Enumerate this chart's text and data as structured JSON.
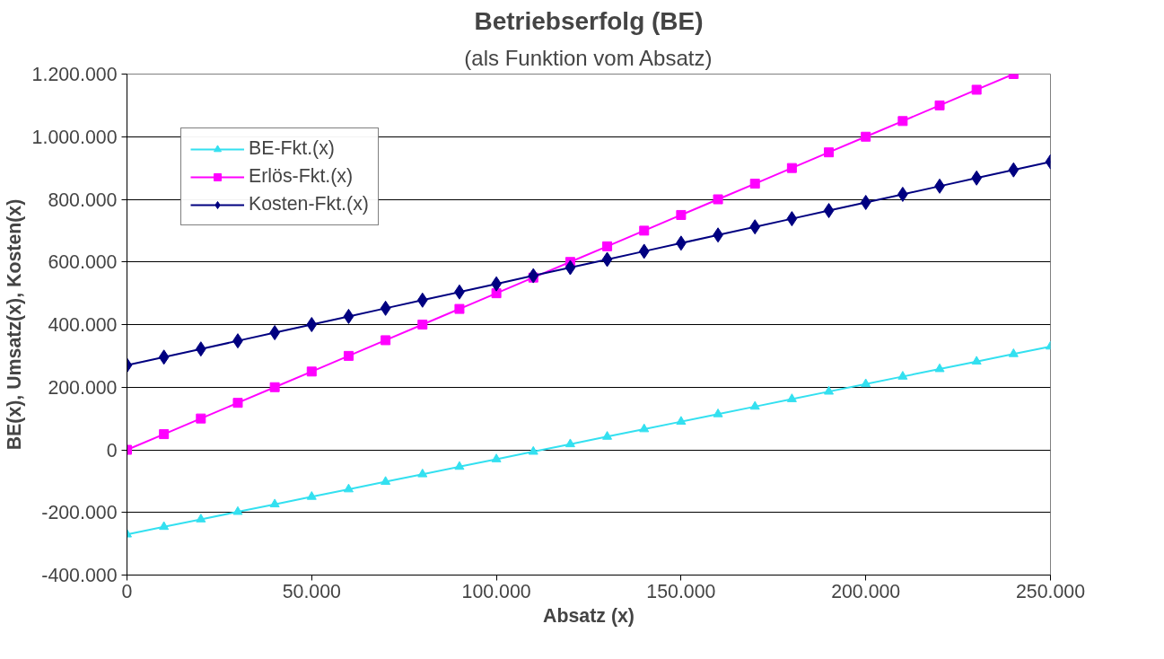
{
  "chart_data": {
    "type": "line",
    "title": "Betriebserfolg (BE)",
    "subtitle": "(als Funktion vom Absatz)",
    "xlabel": "Absatz (x)",
    "ylabel": "BE(x), Umsatz(x), Kosten(x)",
    "x": [
      0,
      10000,
      20000,
      30000,
      40000,
      50000,
      60000,
      70000,
      80000,
      90000,
      100000,
      110000,
      120000,
      130000,
      140000,
      150000,
      160000,
      170000,
      180000,
      190000,
      200000,
      210000,
      220000,
      230000,
      240000,
      250000
    ],
    "series": [
      {
        "name": "Kosten-Fkt.(x)",
        "color": "#000080",
        "marker": "diamond",
        "values": [
          270000,
          296000,
          322000,
          348000,
          374000,
          400000,
          426000,
          452000,
          478000,
          504000,
          530000,
          556000,
          582000,
          608000,
          634000,
          660000,
          686000,
          712000,
          738000,
          764000,
          790000,
          816000,
          842000,
          868000,
          894000,
          920000
        ]
      },
      {
        "name": "Erlös-Fkt.(x)",
        "color": "#ff00ff",
        "marker": "square",
        "values": [
          0,
          50000,
          100000,
          150000,
          200000,
          250000,
          300000,
          350000,
          400000,
          450000,
          500000,
          550000,
          600000,
          650000,
          700000,
          750000,
          800000,
          850000,
          900000,
          950000,
          1000000,
          1050000,
          1100000,
          1150000,
          1200000,
          null
        ]
      },
      {
        "name": "BE-Fkt.(x)",
        "color": "#33e0f0",
        "marker": "triangle",
        "values": [
          -270000,
          -246000,
          -222000,
          -198000,
          -174000,
          -150000,
          -126000,
          -102000,
          -78000,
          -54000,
          -30000,
          -6000,
          18000,
          42000,
          66000,
          90000,
          114000,
          138000,
          162000,
          186000,
          210000,
          234000,
          258000,
          282000,
          306000,
          330000
        ]
      }
    ],
    "xlim": [
      0,
      250000
    ],
    "xticks": [
      0,
      {
        "value": 50000,
        "label": "50.000"
      },
      {
        "value": 100000,
        "label": "100.000"
      },
      {
        "value": 150000,
        "label": "150.000"
      },
      {
        "value": 200000,
        "label": "200.000"
      },
      {
        "value": 250000,
        "label": "250.000"
      }
    ],
    "ylim": [
      -400000,
      1200000
    ],
    "yticks": [
      {
        "value": -400000,
        "label": "-400.000"
      },
      {
        "value": -200000,
        "label": "-200.000"
      },
      0,
      {
        "value": 200000,
        "label": "200.000"
      },
      {
        "value": 400000,
        "label": "400.000"
      },
      {
        "value": 600000,
        "label": "600.000"
      },
      {
        "value": 800000,
        "label": "800.000"
      },
      {
        "value": 1000000,
        "label": "1.000.000"
      },
      {
        "value": 1200000,
        "label": "1.200.000"
      }
    ],
    "grid": "y",
    "legend": "top left",
    "line_style": "solid"
  }
}
